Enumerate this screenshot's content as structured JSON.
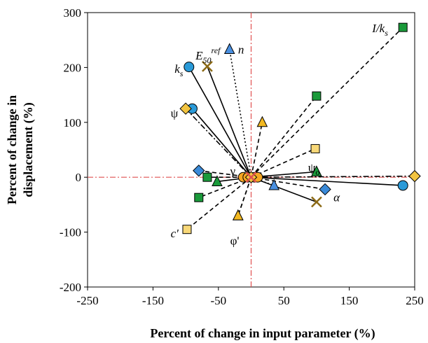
{
  "chart_data": {
    "type": "scatter",
    "xlabel": "Percent of change in input parameter (%)",
    "ylabel_lines": [
      "Percent of change in",
      "displacement (%)"
    ],
    "xlim": [
      -250,
      250
    ],
    "ylim": [
      -200,
      300
    ],
    "xticks": [
      -250,
      -150,
      -50,
      50,
      150,
      250
    ],
    "yticks": [
      -200,
      -100,
      0,
      100,
      200,
      300
    ],
    "grid": false,
    "reference_lines": {
      "x": 0,
      "y": 0,
      "color": "#e05050"
    },
    "origin": [
      0,
      0
    ],
    "series": [
      {
        "label": "I/ks",
        "marker": "square",
        "color": "#1a9a3a",
        "line": "dashed",
        "points": [
          [
            -80,
            -37
          ],
          [
            -67,
            0
          ],
          [
            100,
            148
          ],
          [
            232,
            273
          ]
        ]
      },
      {
        "label": "ks",
        "marker": "circle",
        "color": "#2a9ad8",
        "line": "solid",
        "points": [
          [
            -95,
            201
          ],
          [
            -90,
            125
          ],
          [
            232,
            -15
          ]
        ]
      },
      {
        "label": "E50ref",
        "marker": "cross",
        "color": "#8b6914",
        "line": "solid",
        "points": [
          [
            -67,
            202
          ],
          [
            100,
            -45
          ]
        ]
      },
      {
        "label": "n",
        "marker": "triangle",
        "color": "#4a90e0",
        "line": "dotted",
        "points": [
          [
            -33,
            233
          ],
          [
            35,
            -15
          ]
        ]
      },
      {
        "label": "ψ",
        "marker": "diamond",
        "color": "#f2c440",
        "line": "dashdot",
        "points": [
          [
            -100,
            125
          ],
          [
            250,
            2
          ]
        ]
      },
      {
        "label": "α",
        "marker": "diamond",
        "color": "#3a8ad8",
        "line": "dashed",
        "points": [
          [
            -80,
            12
          ],
          [
            113,
            -22
          ]
        ]
      },
      {
        "label": "ψo",
        "marker": "triangle",
        "color": "#1a9a3a",
        "line": "solid",
        "points": [
          [
            -52,
            -8
          ],
          [
            100,
            10
          ]
        ]
      },
      {
        "label": "γ",
        "marker": "triangle",
        "color": "#f2b820",
        "line": "dashed",
        "points": [
          [
            17,
            100
          ],
          [
            -20,
            -70
          ]
        ]
      },
      {
        "label": "c'",
        "marker": "square",
        "color": "#f8d878",
        "line": "dashed",
        "points": [
          [
            -98,
            -95
          ],
          [
            98,
            52
          ]
        ]
      },
      {
        "label": "φ'",
        "marker": "triangle",
        "color": "#f2b820",
        "line": "dashed",
        "points": [
          [
            -20,
            -70
          ]
        ]
      }
    ],
    "center_markers": [
      {
        "x": -12,
        "y": 0,
        "marker": "circle",
        "color": "#f5a623"
      },
      {
        "x": -5,
        "y": 0,
        "marker": "circle",
        "color": "#f5a623"
      },
      {
        "x": 5,
        "y": 0,
        "marker": "circle",
        "color": "#f5a623"
      },
      {
        "x": 10,
        "y": 0,
        "marker": "circle",
        "color": "#f5a623"
      },
      {
        "x": 0,
        "y": 0,
        "marker": "diamond",
        "color": "#f2c440"
      },
      {
        "x": 0,
        "y": 0,
        "marker": "cross",
        "color": "#e05050"
      }
    ],
    "annotations": [
      {
        "text": "I/k",
        "sub": "s",
        "x": 185,
        "y": 272,
        "italic": true
      },
      {
        "text": "E",
        "sub": "50",
        "sup": "ref",
        "x": -85,
        "y": 222,
        "italic": true
      },
      {
        "text": "n",
        "x": -20,
        "y": 233,
        "italic": true
      },
      {
        "text": "k",
        "sub": "s",
        "x": -117,
        "y": 198,
        "italic": true
      },
      {
        "text": "ψ",
        "x": -123,
        "y": 117,
        "italic": false
      },
      {
        "text": "γ",
        "x": -32,
        "y": 12,
        "italic": false
      },
      {
        "text": "ψ",
        "sub": "o",
        "x": 87,
        "y": 18,
        "italic": false
      },
      {
        "text": "α",
        "x": 126,
        "y": -36,
        "italic": true
      },
      {
        "text": "c'",
        "x": -123,
        "y": -102,
        "italic": true
      },
      {
        "text": "φ'",
        "x": -32,
        "y": -115,
        "italic": false
      }
    ]
  }
}
